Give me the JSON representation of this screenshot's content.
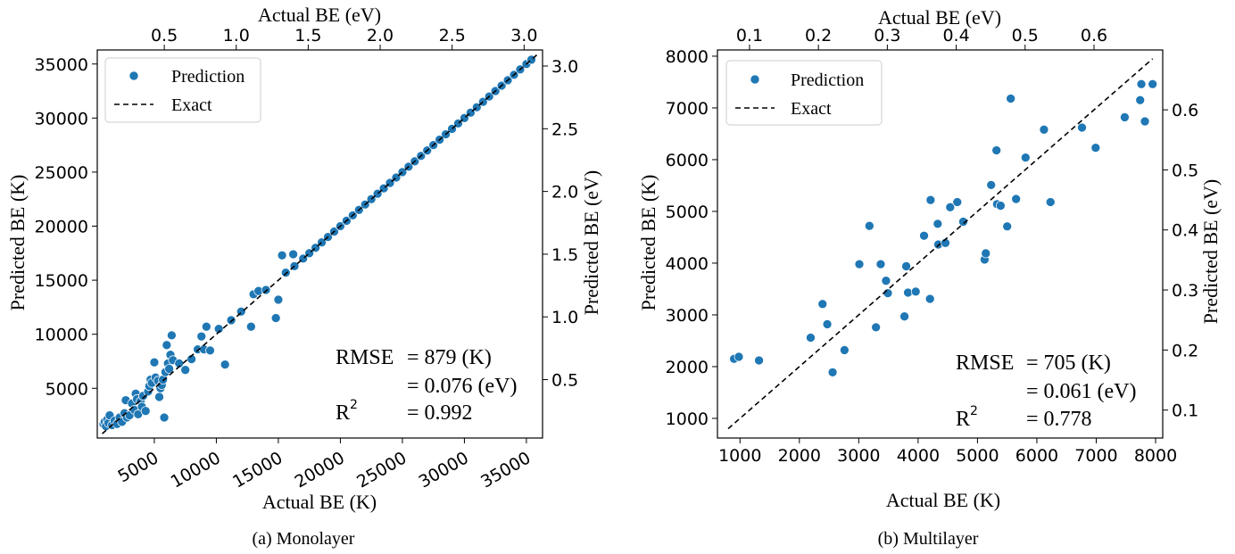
{
  "chart_data": [
    {
      "type": "scatter",
      "caption": "(a) Monolayer",
      "xlabel": "Actual BE (K)",
      "ylabel": "Predicted BE (K)",
      "top_xlabel": "Actual BE (eV)",
      "right_ylabel": "Predicted BE (eV)",
      "xlim": [
        400,
        36300
      ],
      "ylim": [
        400,
        36300
      ],
      "xticks": [
        5000,
        10000,
        15000,
        20000,
        25000,
        30000,
        35000
      ],
      "xtick_labels": [
        "5000",
        "10000",
        "15000",
        "20000",
        "25000",
        "30000",
        "35000"
      ],
      "yticks": [
        5000,
        10000,
        15000,
        20000,
        25000,
        30000,
        35000
      ],
      "ytick_labels": [
        "5000",
        "10000",
        "15000",
        "20000",
        "25000",
        "30000",
        "35000"
      ],
      "top_ticks_ev": [
        0.5,
        1.0,
        1.5,
        2.0,
        2.5,
        3.0
      ],
      "top_tick_labels": [
        "0.5",
        "1.0",
        "1.5",
        "2.0",
        "2.5",
        "3.0"
      ],
      "right_ticks_ev": [
        0.5,
        1.0,
        1.5,
        2.0,
        2.5,
        3.0
      ],
      "right_tick_labels": [
        "0.5",
        "1.0",
        "1.5",
        "2.0",
        "2.5",
        "3.0"
      ],
      "legend": {
        "placement": "top-left",
        "entries": [
          "Prediction",
          "Exact"
        ]
      },
      "stats": {
        "rmse_label": "RMSE",
        "rmse_k": "= 879 (K)",
        "rmse_ev": "= 0.076 (eV)",
        "r2_label": "R",
        "r2_sup": "2",
        "r2_value": "= 0.992"
      },
      "exact_line": [
        [
          800,
          800
        ],
        [
          36000,
          36000
        ]
      ],
      "series": [
        {
          "name": "Prediction",
          "color": "#1f77b4",
          "points": [
            [
              900,
              1700
            ],
            [
              1000,
              1900
            ],
            [
              1100,
              1500
            ],
            [
              1200,
              2100
            ],
            [
              1300,
              1800
            ],
            [
              1400,
              2500
            ],
            [
              1600,
              1600
            ],
            [
              1800,
              2000
            ],
            [
              2000,
              1700
            ],
            [
              2200,
              2300
            ],
            [
              2400,
              1900
            ],
            [
              2600,
              2700
            ],
            [
              2700,
              3900
            ],
            [
              2800,
              2300
            ],
            [
              3000,
              2500
            ],
            [
              3200,
              3600
            ],
            [
              3400,
              3000
            ],
            [
              3500,
              4500
            ],
            [
              3600,
              4000
            ],
            [
              3700,
              2600
            ],
            [
              3900,
              3800
            ],
            [
              4000,
              3300
            ],
            [
              4100,
              4300
            ],
            [
              4300,
              2900
            ],
            [
              4500,
              4700
            ],
            [
              4600,
              5200
            ],
            [
              4700,
              5800
            ],
            [
              4800,
              5500
            ],
            [
              5000,
              7400
            ],
            [
              5100,
              6000
            ],
            [
              5300,
              5700
            ],
            [
              5400,
              4200
            ],
            [
              5500,
              5000
            ],
            [
              5600,
              5300
            ],
            [
              5700,
              5800
            ],
            [
              5800,
              2300
            ],
            [
              5900,
              6500
            ],
            [
              6000,
              9000
            ],
            [
              6100,
              7300
            ],
            [
              6200,
              6800
            ],
            [
              6300,
              8100
            ],
            [
              6400,
              9900
            ],
            [
              6500,
              7600
            ],
            [
              7000,
              7300
            ],
            [
              7500,
              6700
            ],
            [
              8000,
              7700
            ],
            [
              8500,
              8600
            ],
            [
              9000,
              8600
            ],
            [
              9200,
              10700
            ],
            [
              9500,
              8500
            ],
            [
              10200,
              10500
            ],
            [
              10700,
              7200
            ],
            [
              12800,
              10700
            ],
            [
              13000,
              13700
            ],
            [
              13400,
              14000
            ],
            [
              14800,
              11500
            ],
            [
              15000,
              13200
            ],
            [
              15300,
              17300
            ],
            [
              16200,
              17400
            ],
            [
              16300,
              16300
            ],
            [
              8800,
              9800
            ],
            [
              11200,
              11300
            ],
            [
              12000,
              12100
            ],
            [
              14000,
              14100
            ],
            [
              15600,
              15700
            ],
            [
              17000,
              17000
            ],
            [
              17500,
              17500
            ],
            [
              18000,
              18000
            ],
            [
              18500,
              18500
            ],
            [
              19000,
              19000
            ],
            [
              19500,
              19500
            ],
            [
              20000,
              20000
            ],
            [
              20500,
              20500
            ],
            [
              21000,
              21000
            ],
            [
              21500,
              21500
            ],
            [
              22000,
              22000
            ],
            [
              22500,
              22500
            ],
            [
              23000,
              23000
            ],
            [
              23500,
              23500
            ],
            [
              24000,
              24000
            ],
            [
              24500,
              24500
            ],
            [
              25000,
              25000
            ],
            [
              25500,
              25500
            ],
            [
              26000,
              26000
            ],
            [
              26500,
              26500
            ],
            [
              27000,
              27000
            ],
            [
              27500,
              27500
            ],
            [
              28000,
              28000
            ],
            [
              28500,
              28500
            ],
            [
              29000,
              29000
            ],
            [
              29500,
              29500
            ],
            [
              30000,
              30000
            ],
            [
              30500,
              30500
            ],
            [
              31000,
              31000
            ],
            [
              31500,
              31500
            ],
            [
              32000,
              32000
            ],
            [
              32500,
              32500
            ],
            [
              33000,
              33000
            ],
            [
              33500,
              33500
            ],
            [
              34000,
              34000
            ],
            [
              34500,
              34500
            ],
            [
              35000,
              35000
            ],
            [
              35400,
              35400
            ]
          ]
        }
      ]
    },
    {
      "type": "scatter",
      "caption": "(b) Multilayer",
      "xlabel": "Actual BE (K)",
      "ylabel": "Predicted BE (K)",
      "top_xlabel": "Actual BE (eV)",
      "right_ylabel": "Predicted BE (eV)",
      "xlim": [
        620,
        8120
      ],
      "ylim": [
        620,
        8120
      ],
      "xticks": [
        1000,
        2000,
        3000,
        4000,
        5000,
        6000,
        7000,
        8000
      ],
      "xtick_labels": [
        "1000",
        "2000",
        "3000",
        "4000",
        "5000",
        "6000",
        "7000",
        "8000"
      ],
      "yticks": [
        1000,
        2000,
        3000,
        4000,
        5000,
        6000,
        7000,
        8000
      ],
      "ytick_labels": [
        "1000",
        "2000",
        "3000",
        "4000",
        "5000",
        "6000",
        "7000",
        "8000"
      ],
      "top_ticks_ev": [
        0.1,
        0.2,
        0.3,
        0.4,
        0.5,
        0.6
      ],
      "top_tick_labels": [
        "0.1",
        "0.2",
        "0.3",
        "0.4",
        "0.5",
        "0.6"
      ],
      "right_ticks_ev": [
        0.1,
        0.2,
        0.3,
        0.4,
        0.5,
        0.6
      ],
      "right_tick_labels": [
        "0.1",
        "0.2",
        "0.3",
        "0.4",
        "0.5",
        "0.6"
      ],
      "legend": {
        "placement": "top-left",
        "entries": [
          "Prediction",
          "Exact"
        ]
      },
      "stats": {
        "rmse_label": "RMSE",
        "rmse_k": "= 705 (K)",
        "rmse_ev": "= 0.061 (eV)",
        "r2_label": "R",
        "r2_sup": "2",
        "r2_value": "= 0.778"
      },
      "exact_line": [
        [
          800,
          800
        ],
        [
          7950,
          7950
        ]
      ],
      "series": [
        {
          "name": "Prediction",
          "color": "#1f77b4",
          "points": [
            [
              900,
              2150
            ],
            [
              980,
              2190
            ],
            [
              1320,
              2120
            ],
            [
              2190,
              2560
            ],
            [
              2390,
              3210
            ],
            [
              2470,
              2820
            ],
            [
              2560,
              1890
            ],
            [
              2760,
              2320
            ],
            [
              3010,
              3980
            ],
            [
              3180,
              4720
            ],
            [
              3290,
              2760
            ],
            [
              3370,
              3980
            ],
            [
              3460,
              3660
            ],
            [
              3490,
              3420
            ],
            [
              3770,
              2970
            ],
            [
              3800,
              3940
            ],
            [
              3830,
              3430
            ],
            [
              3960,
              3450
            ],
            [
              4100,
              4530
            ],
            [
              4200,
              3310
            ],
            [
              4210,
              5220
            ],
            [
              4330,
              4760
            ],
            [
              4340,
              4360
            ],
            [
              4460,
              4390
            ],
            [
              4540,
              5080
            ],
            [
              4660,
              5180
            ],
            [
              4760,
              4800
            ],
            [
              5120,
              4070
            ],
            [
              5140,
              4190
            ],
            [
              5230,
              5510
            ],
            [
              5320,
              6180
            ],
            [
              5330,
              5140
            ],
            [
              5390,
              5110
            ],
            [
              5500,
              4710
            ],
            [
              5560,
              7180
            ],
            [
              5650,
              5240
            ],
            [
              5810,
              6040
            ],
            [
              6120,
              6580
            ],
            [
              6230,
              5180
            ],
            [
              6760,
              6620
            ],
            [
              6990,
              6230
            ],
            [
              7480,
              6820
            ],
            [
              7740,
              7150
            ],
            [
              7760,
              7460
            ],
            [
              7820,
              6740
            ],
            [
              7950,
              7460
            ]
          ]
        }
      ]
    }
  ]
}
